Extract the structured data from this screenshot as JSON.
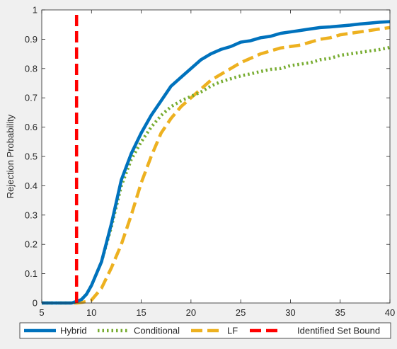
{
  "chart_data": {
    "type": "line",
    "title": "",
    "xlabel": "",
    "ylabel": "Rejection Probability",
    "xlim": [
      5,
      40
    ],
    "ylim": [
      0,
      1
    ],
    "xticks": [
      5,
      10,
      15,
      20,
      25,
      30,
      35,
      40
    ],
    "yticks": [
      0,
      0.1,
      0.2,
      0.3,
      0.4,
      0.5,
      0.6,
      0.7,
      0.8,
      0.9,
      1
    ],
    "grid": false,
    "legend_position": "bottom",
    "series": [
      {
        "name": "Hybrid",
        "color": "#0072bd",
        "style": "solid",
        "x": [
          5,
          6,
          7,
          8,
          8.5,
          9,
          9.5,
          10,
          11,
          12,
          13,
          14,
          15,
          16,
          17,
          18,
          19,
          20,
          21,
          22,
          23,
          24,
          25,
          26,
          27,
          28,
          29,
          30,
          31,
          32,
          33,
          34,
          35,
          36,
          37,
          38,
          39,
          40
        ],
        "values": [
          0,
          0,
          0,
          0,
          0.005,
          0.012,
          0.03,
          0.06,
          0.14,
          0.27,
          0.42,
          0.51,
          0.58,
          0.64,
          0.69,
          0.74,
          0.77,
          0.8,
          0.83,
          0.85,
          0.865,
          0.875,
          0.89,
          0.895,
          0.905,
          0.91,
          0.92,
          0.925,
          0.93,
          0.935,
          0.94,
          0.942,
          0.945,
          0.948,
          0.952,
          0.955,
          0.958,
          0.96
        ]
      },
      {
        "name": "Conditional",
        "color": "#77ac30",
        "style": "dotted",
        "x": [
          5,
          6,
          7,
          8,
          8.5,
          9,
          9.5,
          10,
          11,
          12,
          13,
          14,
          15,
          16,
          17,
          18,
          19,
          20,
          21,
          22,
          23,
          24,
          25,
          26,
          27,
          28,
          29,
          30,
          31,
          32,
          33,
          34,
          35,
          36,
          37,
          38,
          39,
          40
        ],
        "values": [
          0,
          0,
          0,
          0,
          0.005,
          0.012,
          0.03,
          0.06,
          0.14,
          0.26,
          0.4,
          0.49,
          0.55,
          0.6,
          0.64,
          0.67,
          0.69,
          0.705,
          0.72,
          0.74,
          0.755,
          0.765,
          0.775,
          0.782,
          0.79,
          0.797,
          0.8,
          0.81,
          0.815,
          0.82,
          0.83,
          0.835,
          0.845,
          0.85,
          0.855,
          0.86,
          0.865,
          0.872
        ]
      },
      {
        "name": "LF",
        "color": "#edb120",
        "style": "dashed",
        "x": [
          5,
          6,
          7,
          8,
          8.5,
          9,
          9.5,
          10,
          11,
          12,
          13,
          14,
          15,
          16,
          17,
          18,
          19,
          20,
          21,
          22,
          23,
          24,
          25,
          26,
          27,
          28,
          29,
          30,
          31,
          32,
          33,
          34,
          35,
          36,
          37,
          38,
          39,
          40
        ],
        "values": [
          0,
          0,
          0,
          0,
          0,
          0.002,
          0.005,
          0.01,
          0.05,
          0.12,
          0.2,
          0.3,
          0.41,
          0.5,
          0.58,
          0.63,
          0.67,
          0.7,
          0.73,
          0.76,
          0.78,
          0.8,
          0.82,
          0.835,
          0.85,
          0.86,
          0.87,
          0.875,
          0.88,
          0.89,
          0.9,
          0.905,
          0.915,
          0.92,
          0.925,
          0.93,
          0.935,
          0.94
        ]
      },
      {
        "name": "Identified Set Bound",
        "color": "#ff0000",
        "style": "dashed-vertical",
        "x": [
          8.5,
          8.5
        ],
        "values": [
          0,
          1
        ]
      }
    ]
  }
}
